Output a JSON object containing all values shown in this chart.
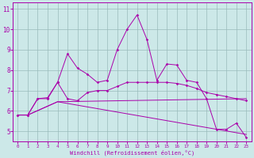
{
  "xlabel": "Windchill (Refroidissement éolien,°C)",
  "xlim": [
    -0.5,
    23.5
  ],
  "ylim": [
    4.5,
    11.3
  ],
  "yticks": [
    5,
    6,
    7,
    8,
    9,
    10,
    11
  ],
  "xticks": [
    0,
    1,
    2,
    3,
    4,
    5,
    6,
    7,
    8,
    9,
    10,
    11,
    12,
    13,
    14,
    15,
    16,
    17,
    18,
    19,
    20,
    21,
    22,
    23
  ],
  "bg_color": "#cce8e8",
  "line_color": "#aa00aa",
  "grid_color": "#99bbbb",
  "series1_x": [
    0,
    1,
    2,
    3,
    4,
    5,
    6,
    7,
    8,
    9,
    10,
    11,
    12,
    13,
    14,
    15,
    16,
    17,
    18,
    19,
    20,
    21,
    22,
    23
  ],
  "series1_y": [
    5.8,
    5.8,
    6.6,
    6.6,
    7.4,
    8.8,
    8.1,
    7.8,
    7.4,
    7.5,
    9.0,
    10.0,
    10.7,
    9.5,
    7.5,
    8.3,
    8.25,
    7.5,
    7.4,
    6.6,
    5.1,
    5.1,
    5.4,
    4.7
  ],
  "series2_x": [
    0,
    1,
    2,
    3,
    4,
    5,
    6,
    7,
    8,
    9,
    10,
    11,
    12,
    13,
    14,
    15,
    16,
    17,
    18,
    19,
    20,
    21,
    22,
    23
  ],
  "series2_y": [
    5.8,
    5.8,
    6.6,
    6.65,
    7.4,
    6.6,
    6.5,
    6.9,
    7.0,
    7.0,
    7.2,
    7.4,
    7.4,
    7.4,
    7.4,
    7.4,
    7.35,
    7.25,
    7.1,
    6.9,
    6.8,
    6.7,
    6.6,
    6.5
  ],
  "series3_x": [
    0,
    1,
    4,
    23
  ],
  "series3_y": [
    5.8,
    5.8,
    6.45,
    4.85
  ],
  "series4_x": [
    0,
    1,
    4,
    23
  ],
  "series4_y": [
    5.8,
    5.8,
    6.45,
    6.6
  ]
}
